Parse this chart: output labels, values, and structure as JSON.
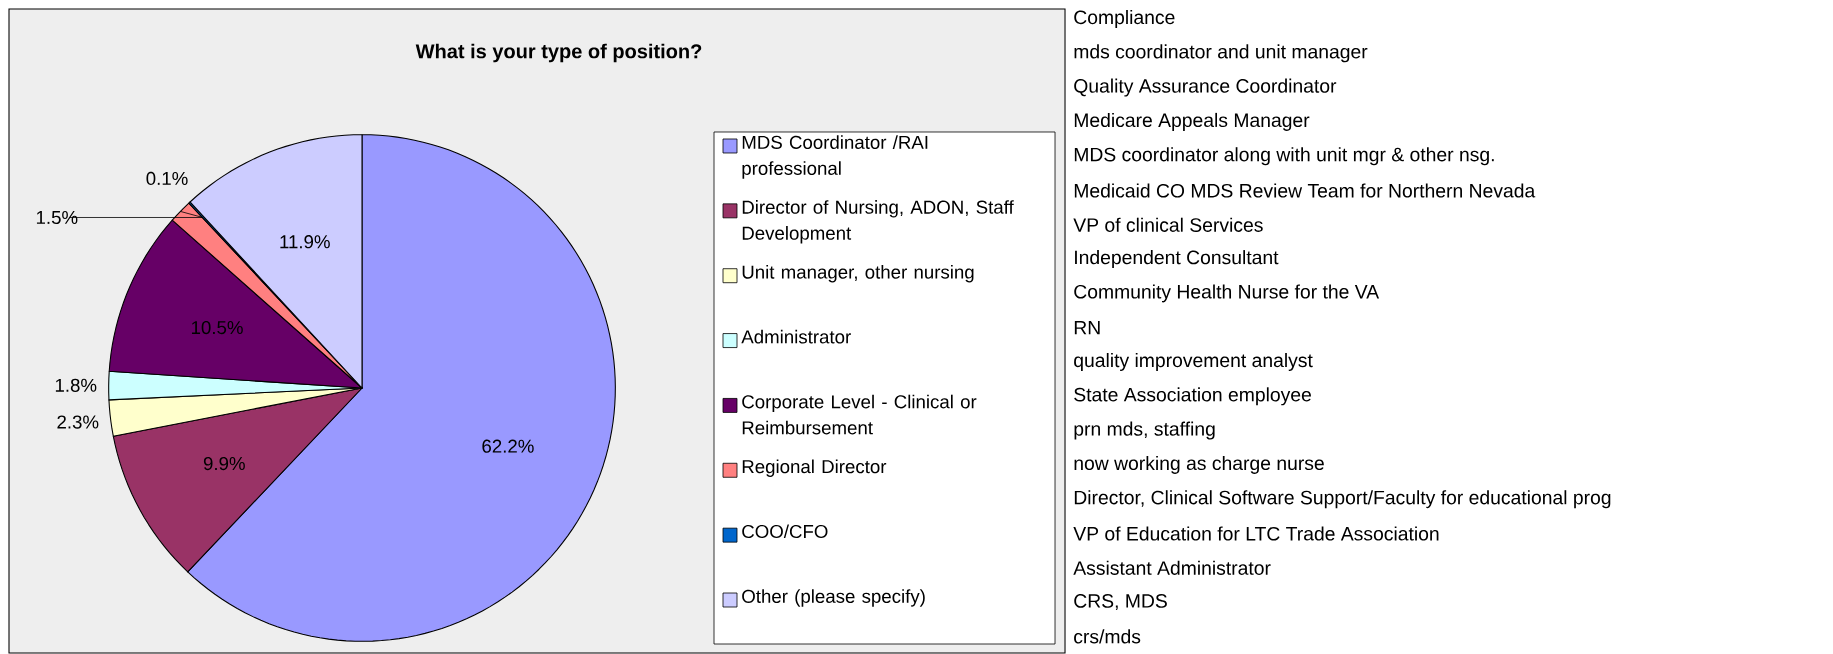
{
  "chart_data": {
    "type": "pie",
    "title": "What is your type of position?",
    "categories": [
      "MDS Coordinator /RAI professional",
      "Director of Nursing, ADON, Staff Development",
      "Unit manager, other nursing",
      "Administrator",
      "Corporate Level  - Clinical or Reimbursement",
      "Regional Director",
      "COO/CFO",
      "Other (please specify)"
    ],
    "values": [
      62.2,
      9.9,
      2.3,
      1.8,
      10.5,
      1.5,
      0.1,
      11.9
    ],
    "value_labels": [
      "62.2%",
      "9.9%",
      "2.3%",
      "1.8%",
      "10.5%",
      "1.5%",
      "0.1%",
      "11.9%"
    ],
    "colors": [
      "#9999ff",
      "#993366",
      "#ffffcc",
      "#ccffff",
      "#660066",
      "#ff8080",
      "#0066cc",
      "#ccccff"
    ],
    "legend": "right",
    "annotations": [
      "Compliance",
      "mds coordinator and unit manager",
      "Quality Assurance Coordinator",
      "Medicare Appeals Manager",
      "MDS coordinator along with unit mgr & other nsg.",
      "Medicaid CO MDS Review Team for Northern Nevada",
      "VP of clinical Services",
      "Independent Consultant",
      "Community Health Nurse for the VA",
      "RN",
      "quality improvement analyst",
      "State Association employee",
      "prn mds, staffing",
      "now working as charge nurse",
      "Director, Clinical Software Support/Faculty for educational prog",
      "VP of Education for LTC Trade Association",
      "Assistant Administrator",
      "CRS, MDS",
      "crs/mds"
    ]
  }
}
